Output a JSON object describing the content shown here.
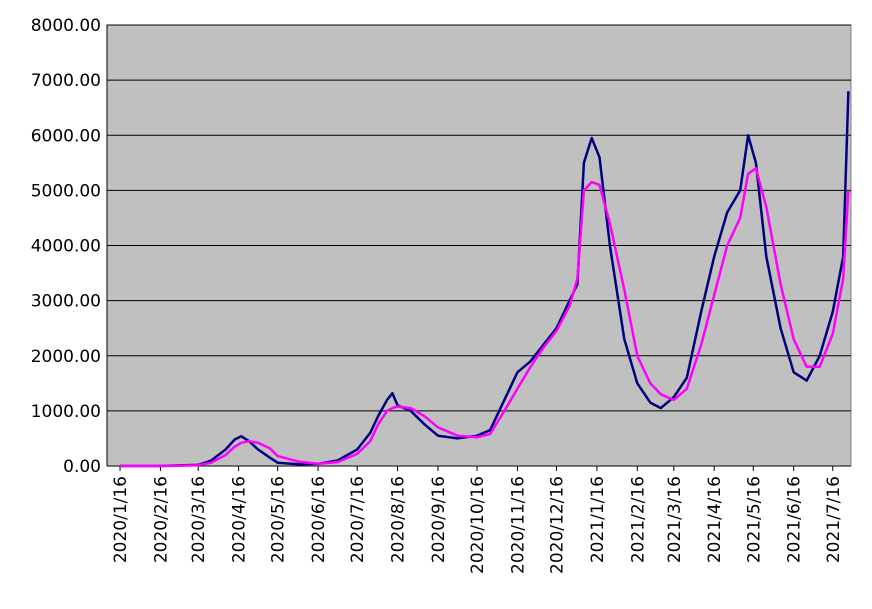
{
  "chart_data": {
    "type": "line",
    "x": [
      "2020/1/16",
      "2020/2/16",
      "2020/3/1",
      "2020/3/16",
      "2020/3/26",
      "2020/4/6",
      "2020/4/13",
      "2020/4/18",
      "2020/4/24",
      "2020/5/1",
      "2020/5/10",
      "2020/5/16",
      "2020/6/1",
      "2020/6/16",
      "2020/7/1",
      "2020/7/16",
      "2020/7/26",
      "2020/8/1",
      "2020/8/8",
      "2020/8/12",
      "2020/8/16",
      "2020/8/26",
      "2020/9/6",
      "2020/9/16",
      "2020/10/1",
      "2020/10/16",
      "2020/10/26",
      "2020/11/6",
      "2020/11/16",
      "2020/11/26",
      "2020/12/6",
      "2020/12/16",
      "2020/12/26",
      "2021/1/1",
      "2021/1/6",
      "2021/1/12",
      "2021/1/18",
      "2021/1/26",
      "2021/2/6",
      "2021/2/16",
      "2021/2/26",
      "2021/3/6",
      "2021/3/16",
      "2021/3/26",
      "2021/4/6",
      "2021/4/16",
      "2021/4/26",
      "2021/5/6",
      "2021/5/12",
      "2021/5/18",
      "2021/5/26",
      "2021/6/6",
      "2021/6/16",
      "2021/6/26",
      "2021/7/6",
      "2021/7/16",
      "2021/7/24",
      "2021/7/28"
    ],
    "series": [
      {
        "color": "#000080",
        "values": [
          0,
          0,
          10,
          20,
          100,
          300,
          480,
          540,
          450,
          300,
          150,
          60,
          30,
          40,
          100,
          300,
          600,
          900,
          1200,
          1320,
          1100,
          1000,
          750,
          550,
          500,
          550,
          650,
          1200,
          1700,
          1900,
          2200,
          2500,
          3000,
          3300,
          5500,
          5950,
          5600,
          4000,
          2300,
          1500,
          1150,
          1050,
          1250,
          1600,
          2800,
          3800,
          4600,
          5000,
          6000,
          5500,
          3800,
          2500,
          1700,
          1550,
          2000,
          2800,
          3800,
          6800
        ]
      },
      {
        "color": "#ff00ff",
        "values": [
          0,
          0,
          5,
          15,
          60,
          200,
          350,
          420,
          450,
          420,
          320,
          180,
          80,
          40,
          70,
          220,
          450,
          750,
          1000,
          1050,
          1080,
          1050,
          900,
          700,
          550,
          520,
          580,
          1000,
          1400,
          1800,
          2150,
          2450,
          2900,
          3400,
          5000,
          5150,
          5100,
          4400,
          3200,
          2000,
          1500,
          1300,
          1200,
          1400,
          2200,
          3100,
          4000,
          4500,
          5300,
          5400,
          4700,
          3300,
          2300,
          1800,
          1800,
          2400,
          3400,
          5000
        ]
      }
    ],
    "xlim": [
      "2020/1/6",
      "2021/7/30"
    ],
    "xticks": [
      "2020/1/16",
      "2020/2/16",
      "2020/3/16",
      "2020/4/16",
      "2020/5/16",
      "2020/6/16",
      "2020/7/16",
      "2020/8/16",
      "2020/9/16",
      "2020/10/16",
      "2020/11/16",
      "2020/12/16",
      "2021/1/16",
      "2021/2/16",
      "2021/3/16",
      "2021/4/16",
      "2021/5/16",
      "2021/6/16",
      "2021/7/16"
    ],
    "ylim": [
      0,
      8000
    ],
    "yticks": [
      {
        "value": 0,
        "label": "0.00"
      },
      {
        "value": 1000,
        "label": "1000.00"
      },
      {
        "value": 2000,
        "label": "2000.00"
      },
      {
        "value": 3000,
        "label": "3000.00"
      },
      {
        "value": 4000,
        "label": "4000.00"
      },
      {
        "value": 5000,
        "label": "5000.00"
      },
      {
        "value": 6000,
        "label": "6000.00"
      },
      {
        "value": 7000,
        "label": "7000.00"
      },
      {
        "value": 8000,
        "label": "8000.00"
      }
    ],
    "grid": true
  }
}
